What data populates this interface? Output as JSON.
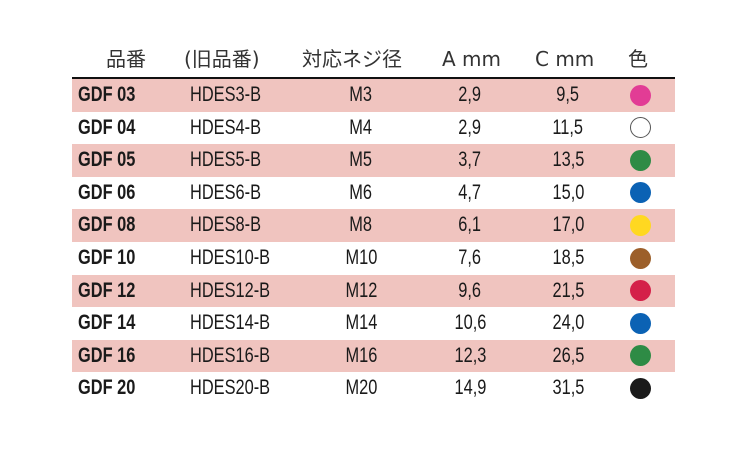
{
  "headers": [
    "品番",
    "(旧品番)",
    "対応ネジ径",
    "A mm",
    "C mm",
    "色"
  ],
  "rows": [
    {
      "code": "GDF 03",
      "old": "HDES3-B",
      "thread": "M3",
      "a": "2,9",
      "c": "9,5",
      "color": "#e23c95"
    },
    {
      "code": "GDF 04",
      "old": "HDES4-B",
      "thread": "M4",
      "a": "2,9",
      "c": "11,5",
      "color": "#ffffff"
    },
    {
      "code": "GDF 05",
      "old": "HDES5-B",
      "thread": "M5",
      "a": "3,7",
      "c": "13,5",
      "color": "#2e8b45"
    },
    {
      "code": "GDF 06",
      "old": "HDES6-B",
      "thread": "M6",
      "a": "4,7",
      "c": "15,0",
      "color": "#0b62b4"
    },
    {
      "code": "GDF 08",
      "old": "HDES8-B",
      "thread": "M8",
      "a": "6,1",
      "c": "17,0",
      "color": "#ffd821"
    },
    {
      "code": "GDF 10",
      "old": "HDES10-B",
      "thread": "M10",
      "a": "7,6",
      "c": "18,5",
      "color": "#9c5f2a"
    },
    {
      "code": "GDF 12",
      "old": "HDES12-B",
      "thread": "M12",
      "a": "9,6",
      "c": "21,5",
      "color": "#d42049"
    },
    {
      "code": "GDF 14",
      "old": "HDES14-B",
      "thread": "M14",
      "a": "10,6",
      "c": "24,0",
      "color": "#0b62b4"
    },
    {
      "code": "GDF 16",
      "old": "HDES16-B",
      "thread": "M16",
      "a": "12,3",
      "c": "26,5",
      "color": "#2e8b45"
    },
    {
      "code": "GDF 20",
      "old": "HDES20-B",
      "thread": "M20",
      "a": "14,9",
      "c": "31,5",
      "color": "#1a1a1a"
    }
  ],
  "row_shade": "#f0c4bf"
}
